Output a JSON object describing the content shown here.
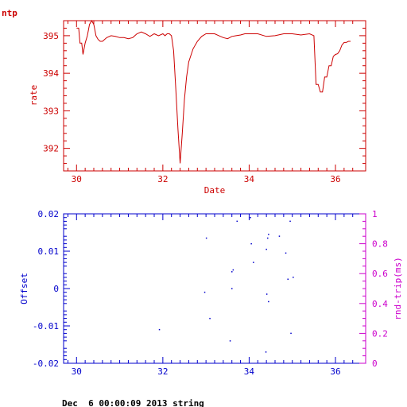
{
  "header": {
    "label": "ntp"
  },
  "footer": {
    "text": "Dec  6 00:00:09 2013 string"
  },
  "colors": {
    "top": "#cc0000",
    "bottom": "#0000cc",
    "right_axis": "#cc00cc"
  },
  "chart_data": [
    {
      "type": "line",
      "title": "",
      "xlabel": "Date",
      "ylabel": "rate",
      "xlim": [
        29.7,
        36.7
      ],
      "ylim": [
        391.4,
        395.4
      ],
      "xticks": [
        30,
        32,
        34,
        36
      ],
      "yticks": [
        392,
        393,
        394,
        395
      ],
      "xtick_labels": [
        "30",
        "32",
        "34",
        "36"
      ],
      "ytick_labels": [
        "392",
        "393",
        "394",
        "395"
      ],
      "grid": false,
      "series": [
        {
          "x": [
            30.0,
            30.05,
            30.08,
            30.12,
            30.15,
            30.2,
            30.25,
            30.3,
            30.35,
            30.4,
            30.45,
            30.5,
            30.55,
            30.6,
            30.65,
            30.7,
            30.8,
            30.9,
            31.0,
            31.1,
            31.2,
            31.3,
            31.4,
            31.5,
            31.6,
            31.7,
            31.8,
            31.9,
            32.0,
            32.05,
            32.1,
            32.15,
            32.2,
            32.25,
            32.3,
            32.35,
            32.4,
            32.45,
            32.5,
            32.55,
            32.6,
            32.7,
            32.8,
            32.9,
            33.0,
            33.1,
            33.2,
            33.3,
            33.4,
            33.5,
            33.6,
            33.7,
            33.8,
            33.9,
            34.0,
            34.2,
            34.4,
            34.6,
            34.8,
            35.0,
            35.2,
            35.4,
            35.5,
            35.55,
            35.6,
            35.65,
            35.7,
            35.75,
            35.8,
            35.85,
            35.9,
            35.95,
            36.0,
            36.05,
            36.1,
            36.15,
            36.2,
            36.25,
            36.3,
            36.35
          ],
          "y": [
            395.2,
            395.2,
            394.8,
            394.8,
            394.5,
            394.8,
            395.0,
            395.3,
            395.4,
            395.3,
            395.0,
            394.9,
            394.85,
            394.85,
            394.9,
            394.95,
            395.0,
            394.98,
            394.95,
            394.95,
            394.92,
            394.95,
            395.05,
            395.1,
            395.05,
            394.98,
            395.05,
            395.0,
            395.05,
            395.0,
            395.05,
            395.05,
            395.0,
            394.6,
            393.6,
            392.5,
            391.6,
            392.4,
            393.3,
            393.9,
            394.3,
            394.65,
            394.85,
            394.98,
            395.05,
            395.05,
            395.05,
            395.0,
            394.95,
            394.92,
            394.98,
            395.0,
            395.02,
            395.05,
            395.05,
            395.05,
            394.98,
            395.0,
            395.05,
            395.05,
            395.02,
            395.05,
            395.0,
            393.7,
            393.7,
            393.5,
            393.5,
            393.9,
            393.9,
            394.2,
            394.2,
            394.45,
            394.5,
            394.52,
            394.6,
            394.75,
            394.82,
            394.82,
            394.85,
            394.85
          ]
        }
      ]
    },
    {
      "type": "scatter",
      "title": "",
      "xlabel": "",
      "ylabel": "Offset",
      "y2label": "rnd-trip(ms)",
      "xlim": [
        29.7,
        36.7
      ],
      "ylim": [
        -0.02,
        0.02
      ],
      "y2lim": [
        0,
        1
      ],
      "xticks": [
        30,
        32,
        34,
        36
      ],
      "yticks": [
        -0.02,
        -0.01,
        0,
        0.01,
        0.02
      ],
      "y2ticks": [
        0,
        0.2,
        0.4,
        0.6,
        0.8,
        1
      ],
      "xtick_labels": [
        "30",
        "32",
        "34",
        "36"
      ],
      "ytick_labels": [
        "-0.02",
        "-0.01",
        "0",
        "0.01",
        "0.02"
      ],
      "y2tick_labels": [
        "0",
        "0.2",
        "0.4",
        "0.6",
        "0.8",
        "1"
      ],
      "grid": false,
      "series": [
        {
          "x": [
            31.92,
            32.97,
            33.01,
            33.09,
            33.56,
            33.6,
            33.6,
            33.63,
            33.72,
            34.03,
            34.05,
            34.1,
            34.39,
            34.41,
            34.43,
            34.45,
            34.45,
            34.4,
            34.7,
            34.85,
            34.9,
            34.95,
            34.97,
            35.02
          ],
          "y": [
            -0.011,
            -0.001,
            0.0135,
            -0.008,
            -0.014,
            0.0,
            0.0045,
            0.005,
            0.018,
            0.019,
            0.012,
            0.007,
            -0.017,
            -0.0015,
            0.0135,
            0.0145,
            -0.0035,
            0.0105,
            0.014,
            0.0095,
            0.0025,
            0.018,
            -0.012,
            0.003
          ]
        }
      ]
    }
  ]
}
